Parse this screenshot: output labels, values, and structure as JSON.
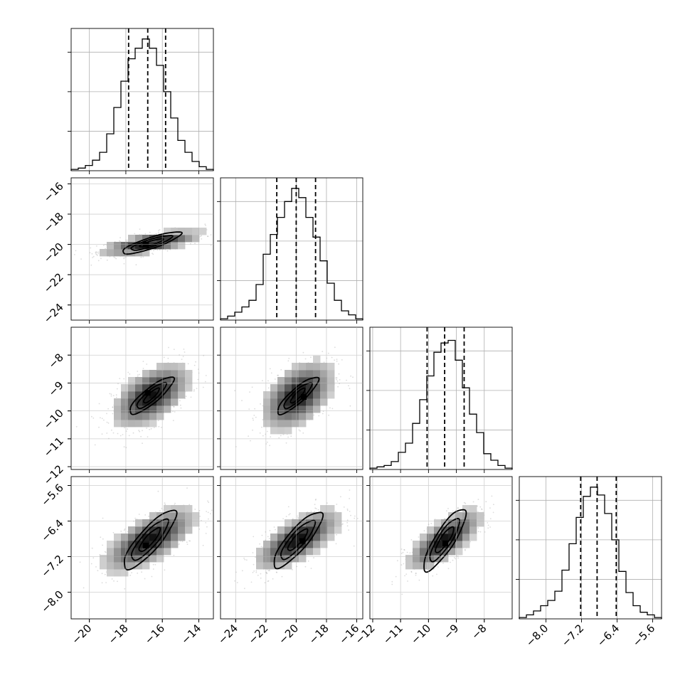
{
  "chart_data": {
    "type": "scatter",
    "kind": "corner-plot",
    "grid": true,
    "parameters": [
      {
        "index": 0,
        "median": -16.8,
        "q16": -17.85,
        "q84": -15.82,
        "range": [
          -21.0,
          -13.2
        ],
        "ticks": [
          -20,
          -18,
          -16,
          -14
        ]
      },
      {
        "index": 1,
        "median": -20.0,
        "q16": -21.28,
        "q84": -18.72,
        "range": [
          -25.0,
          -15.6
        ],
        "ticks": [
          -24,
          -22,
          -20,
          -18,
          -16
        ]
      },
      {
        "index": 2,
        "median": -9.42,
        "q16": -10.05,
        "q84": -8.72,
        "range": [
          -12.1,
          -7.0
        ],
        "ticks": [
          -12,
          -11,
          -10,
          -9,
          -8
        ]
      },
      {
        "index": 3,
        "median": -6.85,
        "q16": -7.22,
        "q84": -6.42,
        "range": [
          -8.6,
          -5.4
        ],
        "ticks": [
          -8.0,
          -7.2,
          -6.4,
          -5.6
        ]
      }
    ],
    "tick_labels": {
      "x": [
        [
          "−20",
          "−18",
          "−16",
          "−14"
        ],
        [
          "−24",
          "−22",
          "−20",
          "−18",
          "−16"
        ],
        [
          "−12",
          "−11",
          "−10",
          "−9",
          "−8"
        ],
        [
          "−8.0",
          "−7.2",
          "−6.4",
          "−5.6"
        ]
      ],
      "y": [
        [],
        [
          "−24",
          "−22",
          "−20",
          "−18",
          "−16"
        ],
        [
          "−12",
          "−11",
          "−10",
          "−9",
          "−8"
        ],
        [
          "−8.0",
          "−7.2",
          "−6.4",
          "−5.6"
        ]
      ]
    },
    "histograms": [
      [
        0.01,
        0.02,
        0.04,
        0.08,
        0.14,
        0.28,
        0.48,
        0.68,
        0.85,
        0.93,
        1.0,
        0.93,
        0.8,
        0.6,
        0.4,
        0.23,
        0.14,
        0.07,
        0.03,
        0.01
      ],
      [
        0.01,
        0.03,
        0.06,
        0.1,
        0.15,
        0.27,
        0.5,
        0.65,
        0.78,
        0.9,
        1.0,
        0.93,
        0.78,
        0.63,
        0.45,
        0.28,
        0.15,
        0.07,
        0.04,
        0.01
      ],
      [
        0.01,
        0.02,
        0.03,
        0.06,
        0.13,
        0.2,
        0.35,
        0.53,
        0.71,
        0.89,
        0.96,
        0.98,
        0.83,
        0.62,
        0.42,
        0.28,
        0.12,
        0.07,
        0.03,
        0.01
      ],
      [
        0.01,
        0.03,
        0.06,
        0.1,
        0.14,
        0.21,
        0.37,
        0.57,
        0.77,
        0.93,
        1.0,
        0.94,
        0.8,
        0.6,
        0.36,
        0.2,
        0.1,
        0.05,
        0.03,
        0.01
      ]
    ],
    "hist_ymax": 1.08,
    "contours": [
      {
        "x": 0,
        "y": 1,
        "center": [
          -16.6,
          -19.9
        ],
        "axes": [
          [
            1.3,
            1.1,
            0.36,
            0.22
          ],
          [
            2.25,
            1.95,
            0.65,
            0.4
          ],
          [
            3.2,
            2.8,
            0.95,
            0.6
          ]
        ],
        "peak": [
          -16.9,
          -20.0
        ]
      },
      {
        "x": 0,
        "y": 2,
        "center": [
          -16.6,
          -9.45
        ],
        "axes": [
          [
            0.85,
            0.62,
            0.55,
            0.22
          ],
          [
            1.6,
            1.2,
            0.95,
            0.38
          ],
          [
            2.4,
            1.85,
            1.3,
            0.55
          ]
        ],
        "peak": [
          -16.8,
          -9.35
        ]
      },
      {
        "x": 1,
        "y": 2,
        "center": [
          -19.9,
          -9.45
        ],
        "axes": [
          [
            0.95,
            0.62,
            0.55,
            0.22
          ],
          [
            1.85,
            1.22,
            1.0,
            0.38
          ],
          [
            2.7,
            1.75,
            1.4,
            0.55
          ]
        ],
        "peak": [
          -19.5,
          -9.5
        ]
      },
      {
        "x": 0,
        "y": 3,
        "center": [
          -16.7,
          -6.82
        ],
        "axes": [
          [
            1.15,
            0.95,
            0.34,
            0.22
          ],
          [
            2.0,
            1.7,
            0.58,
            0.38
          ],
          [
            2.85,
            2.4,
            0.83,
            0.55
          ]
        ],
        "peak": [
          -16.9,
          -6.95
        ]
      },
      {
        "x": 1,
        "y": 3,
        "center": [
          -19.9,
          -6.82
        ],
        "axes": [
          [
            1.3,
            1.1,
            0.32,
            0.2
          ],
          [
            2.25,
            1.95,
            0.55,
            0.36
          ],
          [
            3.2,
            2.8,
            0.78,
            0.52
          ]
        ],
        "peak": [
          -19.6,
          -6.85
        ]
      },
      {
        "x": 2,
        "y": 3,
        "center": [
          -9.42,
          -6.82
        ],
        "axes": [
          [
            0.65,
            0.55,
            0.32,
            0.24
          ],
          [
            1.05,
            0.95,
            0.55,
            0.4
          ],
          [
            1.5,
            1.35,
            0.78,
            0.58
          ]
        ],
        "peak": [
          -9.4,
          -6.9
        ]
      }
    ]
  }
}
